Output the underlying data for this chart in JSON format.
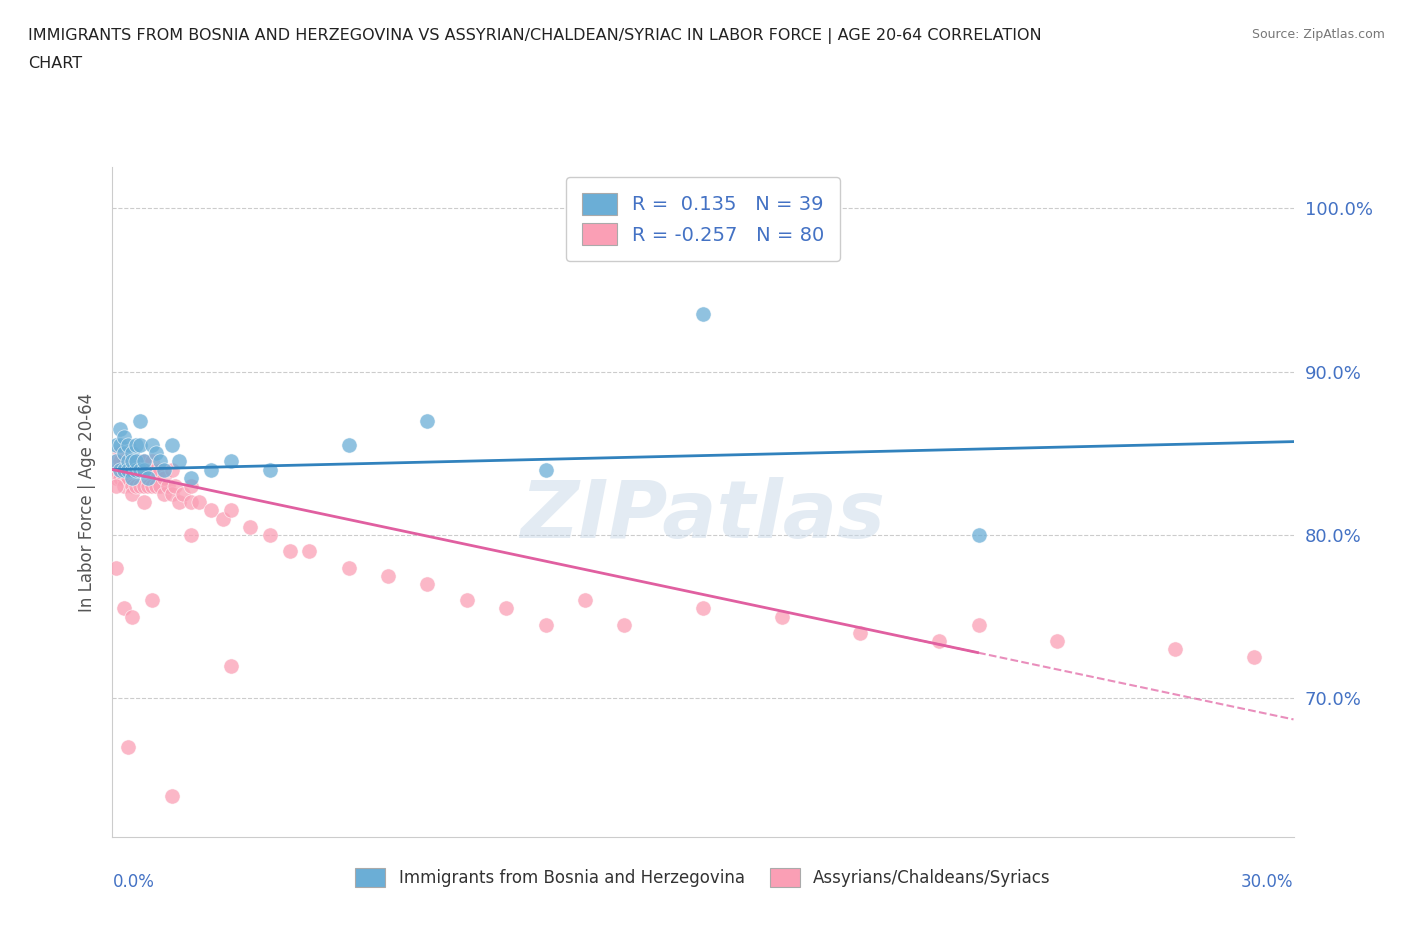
{
  "title_line1": "IMMIGRANTS FROM BOSNIA AND HERZEGOVINA VS ASSYRIAN/CHALDEAN/SYRIAC IN LABOR FORCE | AGE 20-64 CORRELATION",
  "title_line2": "CHART",
  "source": "Source: ZipAtlas.com",
  "ylabel": "In Labor Force | Age 20-64",
  "ytick_labels": [
    "70.0%",
    "80.0%",
    "90.0%",
    "100.0%"
  ],
  "ytick_values": [
    0.7,
    0.8,
    0.9,
    1.0
  ],
  "xlim": [
    0.0,
    0.3
  ],
  "ylim": [
    0.615,
    1.025
  ],
  "color_blue": "#6baed6",
  "color_pink": "#fa9fb5",
  "color_blue_line": "#3182bd",
  "color_pink_line": "#e05fa0",
  "watermark": "ZIPatlas",
  "bosnia_x": [
    0.001,
    0.001,
    0.002,
    0.002,
    0.002,
    0.003,
    0.003,
    0.003,
    0.004,
    0.004,
    0.004,
    0.005,
    0.005,
    0.005,
    0.005,
    0.006,
    0.006,
    0.006,
    0.007,
    0.007,
    0.007,
    0.008,
    0.008,
    0.009,
    0.01,
    0.011,
    0.012,
    0.013,
    0.015,
    0.017,
    0.02,
    0.025,
    0.03,
    0.04,
    0.06,
    0.08,
    0.11,
    0.15,
    0.22
  ],
  "bosnia_y": [
    0.855,
    0.845,
    0.84,
    0.855,
    0.865,
    0.85,
    0.84,
    0.86,
    0.845,
    0.855,
    0.84,
    0.85,
    0.84,
    0.835,
    0.845,
    0.84,
    0.855,
    0.845,
    0.84,
    0.855,
    0.87,
    0.84,
    0.845,
    0.835,
    0.855,
    0.85,
    0.845,
    0.84,
    0.855,
    0.845,
    0.835,
    0.84,
    0.845,
    0.84,
    0.855,
    0.87,
    0.84,
    0.935,
    0.8
  ],
  "assyrian_x": [
    0.001,
    0.001,
    0.001,
    0.002,
    0.002,
    0.002,
    0.003,
    0.003,
    0.003,
    0.003,
    0.004,
    0.004,
    0.004,
    0.005,
    0.005,
    0.005,
    0.005,
    0.006,
    0.006,
    0.006,
    0.007,
    0.007,
    0.007,
    0.008,
    0.008,
    0.008,
    0.008,
    0.009,
    0.009,
    0.01,
    0.01,
    0.01,
    0.011,
    0.011,
    0.012,
    0.012,
    0.013,
    0.013,
    0.014,
    0.015,
    0.015,
    0.016,
    0.017,
    0.018,
    0.02,
    0.02,
    0.022,
    0.025,
    0.028,
    0.03,
    0.035,
    0.04,
    0.045,
    0.05,
    0.06,
    0.07,
    0.08,
    0.09,
    0.1,
    0.11,
    0.12,
    0.13,
    0.15,
    0.17,
    0.19,
    0.21,
    0.22,
    0.24,
    0.27,
    0.29,
    0.001,
    0.001,
    0.002,
    0.003,
    0.004,
    0.005,
    0.01,
    0.015,
    0.02,
    0.03
  ],
  "assyrian_y": [
    0.845,
    0.84,
    0.835,
    0.85,
    0.84,
    0.835,
    0.845,
    0.84,
    0.835,
    0.83,
    0.845,
    0.84,
    0.835,
    0.845,
    0.84,
    0.83,
    0.825,
    0.845,
    0.84,
    0.83,
    0.845,
    0.84,
    0.83,
    0.845,
    0.84,
    0.83,
    0.82,
    0.84,
    0.83,
    0.845,
    0.84,
    0.83,
    0.84,
    0.83,
    0.84,
    0.83,
    0.835,
    0.825,
    0.83,
    0.84,
    0.825,
    0.83,
    0.82,
    0.825,
    0.83,
    0.82,
    0.82,
    0.815,
    0.81,
    0.815,
    0.805,
    0.8,
    0.79,
    0.79,
    0.78,
    0.775,
    0.77,
    0.76,
    0.755,
    0.745,
    0.76,
    0.745,
    0.755,
    0.75,
    0.74,
    0.735,
    0.745,
    0.735,
    0.73,
    0.725,
    0.83,
    0.78,
    0.845,
    0.755,
    0.67,
    0.75,
    0.76,
    0.64,
    0.8,
    0.72
  ]
}
